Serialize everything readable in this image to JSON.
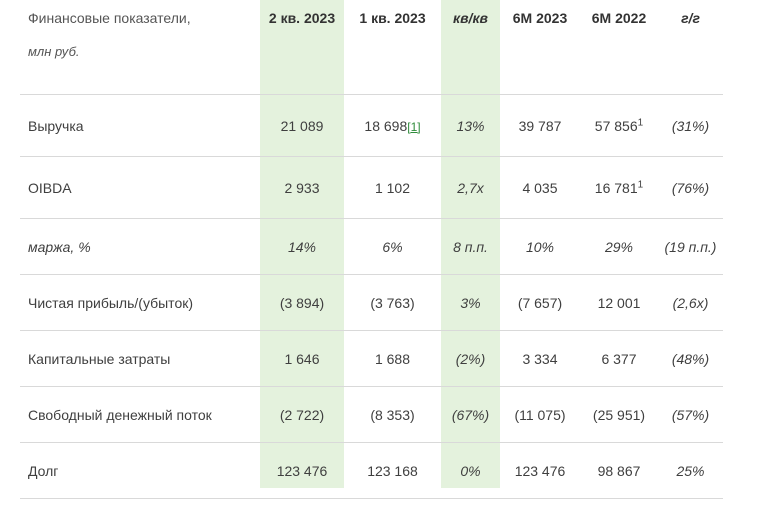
{
  "header": {
    "label_line1": "Финансовые показатели,",
    "label_line2": "млн руб.",
    "columns": [
      "2 кв. 2023",
      "1 кв. 2023",
      "кв/кв",
      "6М 2023",
      "6М 2022",
      "г/г"
    ]
  },
  "rows": [
    {
      "label": "Выручка",
      "c1": "21 089",
      "c2": "18 698",
      "c2_note": "[1]",
      "c3": "13%",
      "c4": "39 787",
      "c5": "57 856",
      "c5_sup": "1",
      "c6": "(31%)"
    },
    {
      "label": "OIBDA",
      "c1": "2 933",
      "c2": "1 102",
      "c3": "2,7x",
      "c4": "4 035",
      "c5": "16 781",
      "c5_sup": "1",
      "c6": "(76%)"
    },
    {
      "label": "маржа, %",
      "c1": "14%",
      "c2": "6%",
      "c3": "8 п.п.",
      "c4": "10%",
      "c5": "29%",
      "c6": "(19 п.п.)"
    },
    {
      "label": "Чистая прибыль/(убыток)",
      "c1": "(3 894)",
      "c2": "(3 763)",
      "c3": "3%",
      "c4": "(7 657)",
      "c5": "12 001",
      "c6": "(2,6x)"
    },
    {
      "label": "Капитальные затраты",
      "c1": "1 646",
      "c2": "1 688",
      "c3": "(2%)",
      "c4": "3 334",
      "c5": "6 377",
      "c6": "(48%)"
    },
    {
      "label": "Свободный денежный поток",
      "c1": "(2 722)",
      "c2": "(8 353)",
      "c3": "(67%)",
      "c4": "(11 075)",
      "c5": "(25 951)",
      "c6": "(57%)"
    },
    {
      "label": "Долг",
      "c1": "123 476",
      "c2": "123 168",
      "c3": "0%",
      "c4": "123 476",
      "c5": "98 867",
      "c6": "25%"
    }
  ],
  "highlight_color": "#e4f2dd",
  "note_link_color": "#2e8b3a"
}
